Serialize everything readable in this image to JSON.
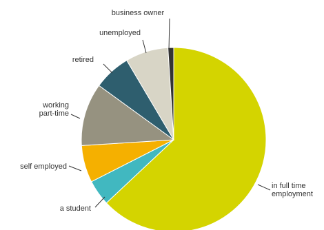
{
  "chart_data": {
    "type": "pie",
    "start_angle_deg": 0,
    "direction": "clockwise",
    "slices": [
      {
        "label": "in full time employment",
        "label_lines": [
          "in full time",
          "employment"
        ],
        "value": 63.0,
        "color": "#d4d400"
      },
      {
        "label": "a student",
        "label_lines": [
          "a student"
        ],
        "value": 4.5,
        "color": "#41b8c0"
      },
      {
        "label": "self employed",
        "label_lines": [
          "self employed"
        ],
        "value": 6.5,
        "color": "#f5b000"
      },
      {
        "label": "working part-time",
        "label_lines": [
          "working",
          "part-time"
        ],
        "value": 11.0,
        "color": "#969280"
      },
      {
        "label": "retired",
        "label_lines": [
          "retired"
        ],
        "value": 6.5,
        "color": "#2e5e6e"
      },
      {
        "label": "unemployed",
        "label_lines": [
          "unemployed"
        ],
        "value": 7.5,
        "color": "#d8d5c6"
      },
      {
        "label": "business owner",
        "label_lines": [
          "business owner"
        ],
        "value": 1.0,
        "color": "#333333"
      }
    ]
  }
}
